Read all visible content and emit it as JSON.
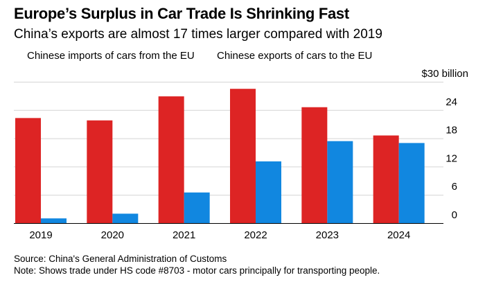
{
  "chart_data": {
    "type": "bar",
    "title": "Europe’s Surplus in Car Trade Is Shrinking Fast",
    "subtitle": "China’s exports are almost 17 times larger compared with 2019",
    "categories": [
      "2019",
      "2020",
      "2021",
      "2022",
      "2023",
      "2024"
    ],
    "series": [
      {
        "name": "Chinese imports of cars from the EU",
        "color": "#dd2424",
        "values": [
          22.3,
          21.8,
          26.9,
          28.5,
          24.6,
          18.6
        ]
      },
      {
        "name": "Chinese exports of cars to the EU",
        "color": "#1187e0",
        "values": [
          1.0,
          2.0,
          6.5,
          13.1,
          17.4,
          17.0
        ]
      }
    ],
    "ylim": [
      0,
      30
    ],
    "yticks": [
      0,
      6,
      12,
      18,
      24
    ],
    "ytick_labels": [
      "0",
      "6",
      "12",
      "18",
      "24"
    ],
    "ymax_label": "$30 billion",
    "xlabel": "",
    "ylabel": "",
    "grid": true,
    "legend_position": "top-left"
  },
  "footer": {
    "source": "Source: China's General Administration of Customs",
    "note": "Note: Shows trade under HS code #8703 - motor cars principally for transporting people."
  }
}
